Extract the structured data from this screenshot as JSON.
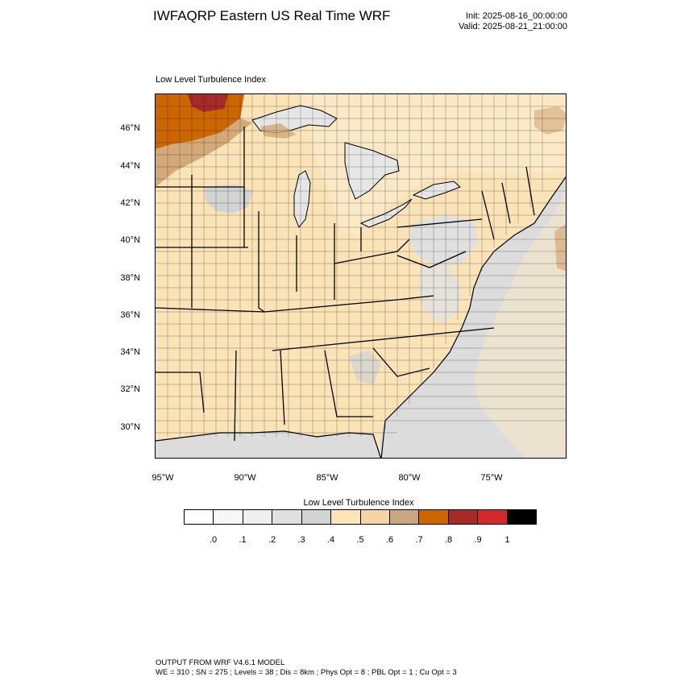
{
  "header": {
    "title": "IWFAQRP Eastern US Real Time WRF",
    "init": "Init: 2025-08-16_00:00:00",
    "valid": "Valid: 2025-08-21_21:00:00"
  },
  "map": {
    "field_label": "Low Level Turbulence Index",
    "lat_ticks": [
      "46°N",
      "44°N",
      "42°N",
      "40°N",
      "38°N",
      "36°N",
      "34°N",
      "32°N",
      "30°N"
    ],
    "lon_ticks": [
      "95°W",
      "90°W",
      "85°W",
      "80°W",
      "75°W"
    ],
    "colors": {
      "land": "#fbe3b8",
      "ocean": "#dcdcdc",
      "lakes": "#e6e6e6",
      "tan": "#d4a97a",
      "orange": "#cc6600",
      "red": "#a52a2a"
    }
  },
  "colorbar": {
    "title": "Low Level Turbulence Index",
    "colors": [
      "#ffffff",
      "#f7f7f7",
      "#efefef",
      "#e0e0e0",
      "#d3d3d3",
      "#ffe4b5",
      "#f5d5a5",
      "#c8a882",
      "#cc6600",
      "#a52a2a",
      "#d22a2a",
      "#000000"
    ],
    "labels": [
      ".0",
      ".1",
      ".2",
      ".3",
      ".4",
      ".5",
      ".6",
      ".7",
      ".8",
      ".9",
      "1"
    ]
  },
  "footer": {
    "line1": "OUTPUT FROM WRF V4.6.1 MODEL",
    "line2": "WE = 310 ; SN = 275 ; Levels = 38 ; Dis = 8km ; Phys Opt = 8 ; PBL Opt = 1 ; Cu Opt = 3"
  }
}
